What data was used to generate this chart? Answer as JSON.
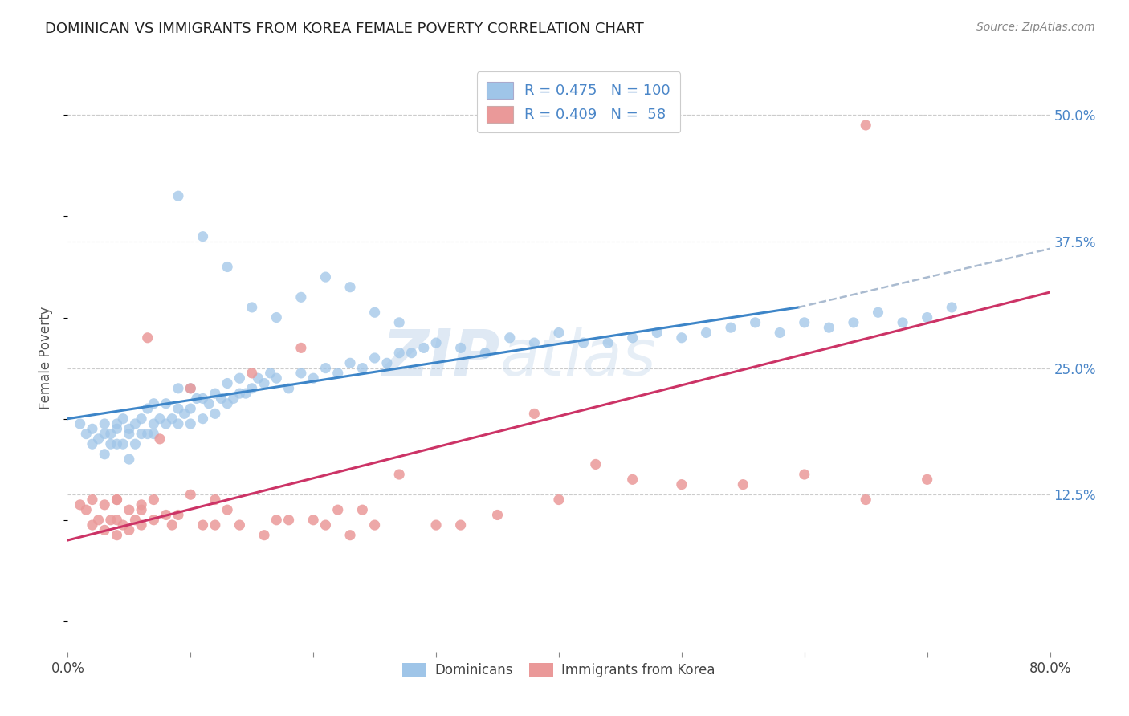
{
  "title": "DOMINICAN VS IMMIGRANTS FROM KOREA FEMALE POVERTY CORRELATION CHART",
  "source": "Source: ZipAtlas.com",
  "ylabel": "Female Poverty",
  "xlim": [
    0.0,
    0.8
  ],
  "ylim": [
    -0.03,
    0.55
  ],
  "ytick_labels_right": [
    "50.0%",
    "37.5%",
    "25.0%",
    "12.5%"
  ],
  "ytick_positions_right": [
    0.5,
    0.375,
    0.25,
    0.125
  ],
  "blue_color": "#9fc5e8",
  "pink_color": "#ea9999",
  "line_blue": "#3d85c8",
  "line_pink": "#cc3366",
  "line_dashed_color": "#aabbd0",
  "legend_R_blue": "0.475",
  "legend_N_blue": "100",
  "legend_R_pink": "0.409",
  "legend_N_pink": "58",
  "legend_label_blue": "Dominicans",
  "legend_label_pink": "Immigrants from Korea",
  "watermark_zip": "ZIP",
  "watermark_atlas": "atlas",
  "blue_x": [
    0.01,
    0.015,
    0.02,
    0.02,
    0.025,
    0.03,
    0.03,
    0.03,
    0.035,
    0.035,
    0.04,
    0.04,
    0.04,
    0.045,
    0.045,
    0.05,
    0.05,
    0.05,
    0.055,
    0.055,
    0.06,
    0.06,
    0.065,
    0.065,
    0.07,
    0.07,
    0.07,
    0.075,
    0.08,
    0.08,
    0.085,
    0.09,
    0.09,
    0.09,
    0.095,
    0.1,
    0.1,
    0.1,
    0.105,
    0.11,
    0.11,
    0.115,
    0.12,
    0.12,
    0.125,
    0.13,
    0.13,
    0.135,
    0.14,
    0.14,
    0.145,
    0.15,
    0.155,
    0.16,
    0.165,
    0.17,
    0.18,
    0.19,
    0.2,
    0.21,
    0.22,
    0.23,
    0.24,
    0.25,
    0.26,
    0.27,
    0.28,
    0.29,
    0.3,
    0.32,
    0.34,
    0.36,
    0.38,
    0.4,
    0.42,
    0.44,
    0.46,
    0.48,
    0.5,
    0.52,
    0.54,
    0.56,
    0.58,
    0.6,
    0.62,
    0.64,
    0.66,
    0.68,
    0.7,
    0.72,
    0.09,
    0.11,
    0.13,
    0.15,
    0.17,
    0.19,
    0.21,
    0.23,
    0.25,
    0.27
  ],
  "blue_y": [
    0.195,
    0.185,
    0.175,
    0.19,
    0.18,
    0.165,
    0.185,
    0.195,
    0.175,
    0.185,
    0.19,
    0.175,
    0.195,
    0.175,
    0.2,
    0.16,
    0.185,
    0.19,
    0.175,
    0.195,
    0.185,
    0.2,
    0.185,
    0.21,
    0.185,
    0.195,
    0.215,
    0.2,
    0.195,
    0.215,
    0.2,
    0.195,
    0.21,
    0.23,
    0.205,
    0.195,
    0.21,
    0.23,
    0.22,
    0.2,
    0.22,
    0.215,
    0.205,
    0.225,
    0.22,
    0.215,
    0.235,
    0.22,
    0.225,
    0.24,
    0.225,
    0.23,
    0.24,
    0.235,
    0.245,
    0.24,
    0.23,
    0.245,
    0.24,
    0.25,
    0.245,
    0.255,
    0.25,
    0.26,
    0.255,
    0.265,
    0.265,
    0.27,
    0.275,
    0.27,
    0.265,
    0.28,
    0.275,
    0.285,
    0.275,
    0.275,
    0.28,
    0.285,
    0.28,
    0.285,
    0.29,
    0.295,
    0.285,
    0.295,
    0.29,
    0.295,
    0.305,
    0.295,
    0.3,
    0.31,
    0.42,
    0.38,
    0.35,
    0.31,
    0.3,
    0.32,
    0.34,
    0.33,
    0.305,
    0.295
  ],
  "pink_x": [
    0.01,
    0.015,
    0.02,
    0.02,
    0.025,
    0.03,
    0.03,
    0.035,
    0.04,
    0.04,
    0.04,
    0.045,
    0.05,
    0.05,
    0.055,
    0.06,
    0.06,
    0.065,
    0.07,
    0.07,
    0.075,
    0.08,
    0.085,
    0.09,
    0.1,
    0.1,
    0.11,
    0.12,
    0.13,
    0.14,
    0.15,
    0.16,
    0.17,
    0.18,
    0.19,
    0.2,
    0.21,
    0.22,
    0.23,
    0.24,
    0.25,
    0.27,
    0.3,
    0.32,
    0.35,
    0.38,
    0.4,
    0.43,
    0.46,
    0.5,
    0.55,
    0.6,
    0.65,
    0.7,
    0.04,
    0.06,
    0.12,
    0.65
  ],
  "pink_y": [
    0.115,
    0.11,
    0.095,
    0.12,
    0.1,
    0.09,
    0.115,
    0.1,
    0.085,
    0.1,
    0.12,
    0.095,
    0.09,
    0.11,
    0.1,
    0.095,
    0.115,
    0.28,
    0.1,
    0.12,
    0.18,
    0.105,
    0.095,
    0.105,
    0.125,
    0.23,
    0.095,
    0.095,
    0.11,
    0.095,
    0.245,
    0.085,
    0.1,
    0.1,
    0.27,
    0.1,
    0.095,
    0.11,
    0.085,
    0.11,
    0.095,
    0.145,
    0.095,
    0.095,
    0.105,
    0.205,
    0.12,
    0.155,
    0.14,
    0.135,
    0.135,
    0.145,
    0.12,
    0.14,
    0.12,
    0.11,
    0.12,
    0.49
  ],
  "blue_trend_x": [
    0.0,
    0.595
  ],
  "blue_trend_y": [
    0.2,
    0.31
  ],
  "pink_trend_x": [
    0.0,
    0.8
  ],
  "pink_trend_y": [
    0.08,
    0.325
  ],
  "dashed_trend_x": [
    0.595,
    0.8
  ],
  "dashed_trend_y": [
    0.31,
    0.368
  ],
  "grid_color": "#cccccc",
  "background_color": "#ffffff",
  "title_fontsize": 13,
  "right_tick_color": "#4a86c8"
}
